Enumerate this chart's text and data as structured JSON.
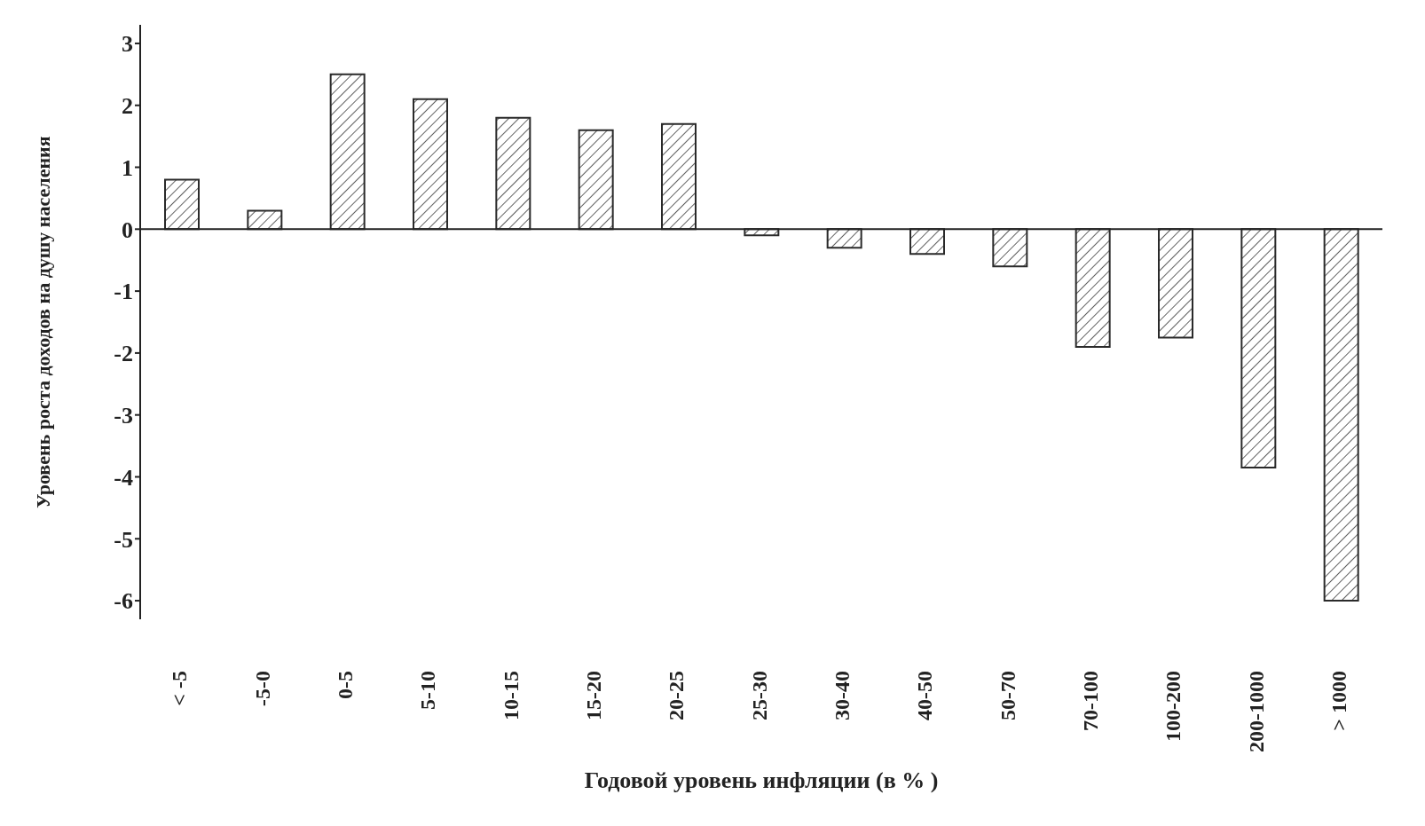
{
  "chart_data": {
    "type": "bar",
    "xlabel": "Годовой уровень инфляции (в % )",
    "ylabel": "Уровень роста доходов на душу населения",
    "categories": [
      "< -5",
      "-5-0",
      "0-5",
      "5-10",
      "10-15",
      "15-20",
      "20-25",
      "25-30",
      "30-40",
      "40-50",
      "50-70",
      "70-100",
      "100-200",
      "200-1000",
      "> 1000"
    ],
    "values": [
      0.8,
      0.3,
      2.5,
      2.1,
      1.8,
      1.6,
      1.7,
      -0.1,
      -0.3,
      -0.4,
      -0.6,
      -1.9,
      -1.75,
      -3.85,
      -6.0
    ],
    "color": "#2a2a2a",
    "ylim": [
      -6.3,
      3.3
    ],
    "yticks": [
      -6,
      -5,
      -4,
      -3,
      -2,
      -1,
      0,
      1,
      2,
      3
    ]
  }
}
